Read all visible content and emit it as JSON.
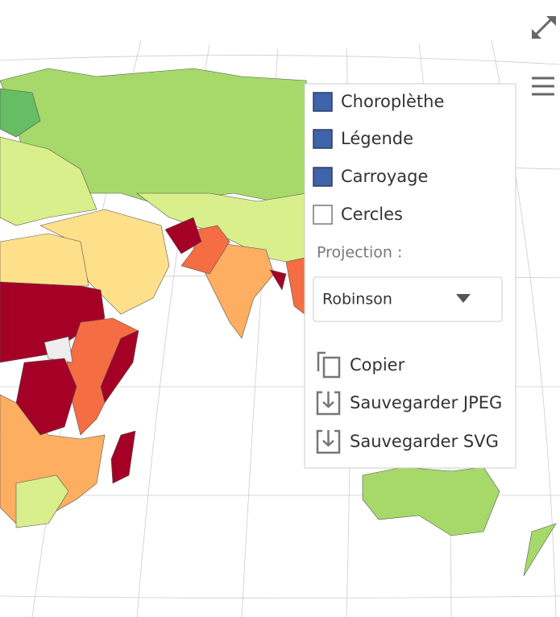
{
  "menu": {
    "layers": [
      {
        "label": "Choroplèthe",
        "checked": true
      },
      {
        "label": "Légende",
        "checked": true
      },
      {
        "label": "Carroyage",
        "checked": true
      },
      {
        "label": "Cercles",
        "checked": false
      }
    ],
    "projection_label": "Projection :",
    "projection_value": "Robinson",
    "actions": [
      "Copier",
      "Sauvegarder JPEG",
      "Sauvegarder SVG"
    ]
  }
}
